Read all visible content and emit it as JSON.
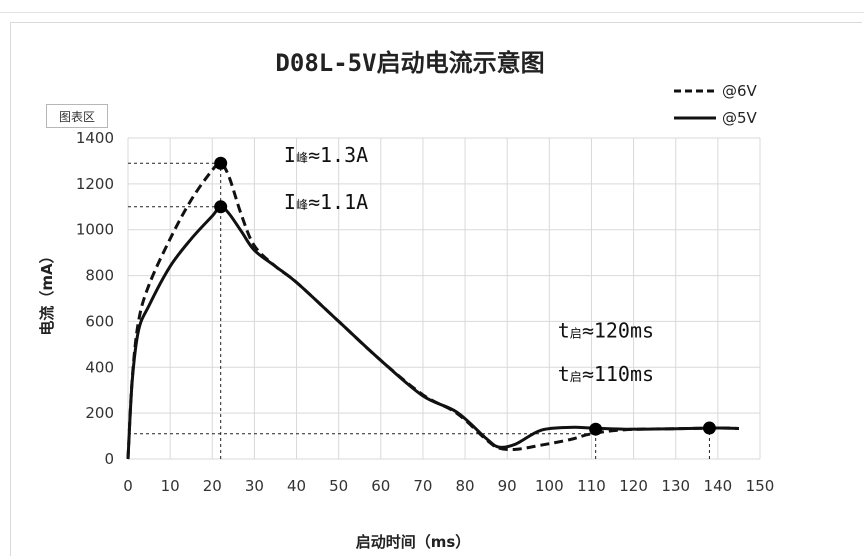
{
  "chart_area_label": "图表区",
  "chart_data": {
    "type": "line",
    "title": "D08L-5V启动电流示意图",
    "xlabel": "启动时间（ms）",
    "ylabel": "电流（mA）",
    "xlim": [
      0,
      150
    ],
    "ylim": [
      0,
      1400
    ],
    "x_ticks": [
      0,
      10,
      20,
      30,
      40,
      50,
      60,
      70,
      80,
      90,
      100,
      110,
      120,
      130,
      140,
      150
    ],
    "y_ticks": [
      0,
      200,
      400,
      600,
      800,
      1000,
      1200,
      1400
    ],
    "grid": true,
    "legend_position": "top-right",
    "series": [
      {
        "name": "@6V",
        "style": "dashed",
        "color": "#111111",
        "x": [
          0,
          1,
          2.5,
          5,
          10,
          15,
          20,
          22,
          24,
          27,
          30,
          35,
          40,
          50,
          60,
          70,
          78,
          85,
          88,
          92,
          98,
          105,
          110,
          118,
          130,
          140,
          145
        ],
        "y": [
          0,
          350,
          600,
          760,
          960,
          1130,
          1260,
          1290,
          1230,
          1060,
          930,
          840,
          770,
          600,
          430,
          280,
          200,
          85,
          48,
          42,
          60,
          85,
          110,
          128,
          132,
          135,
          133
        ]
      },
      {
        "name": "@5V",
        "style": "solid",
        "color": "#111111",
        "x": [
          0,
          1,
          2.5,
          5,
          10,
          15,
          20,
          22,
          24,
          27,
          30,
          35,
          40,
          50,
          60,
          70,
          78,
          85,
          88,
          92,
          98,
          105,
          110,
          118,
          130,
          140,
          145
        ],
        "y": [
          0,
          340,
          560,
          670,
          840,
          960,
          1060,
          1100,
          1070,
          990,
          910,
          840,
          770,
          600,
          430,
          275,
          205,
          90,
          52,
          65,
          125,
          138,
          135,
          130,
          132,
          135,
          133
        ]
      }
    ],
    "markers": [
      {
        "x": 22,
        "y": 1290
      },
      {
        "x": 22,
        "y": 1100
      },
      {
        "x": 111,
        "y": 130
      },
      {
        "x": 138,
        "y": 135
      }
    ],
    "reference_lines": [
      {
        "orientation": "h",
        "y": 1290,
        "x_from": 0,
        "x_to": 22
      },
      {
        "orientation": "h",
        "y": 1100,
        "x_from": 0,
        "x_to": 22
      },
      {
        "orientation": "v",
        "x": 22,
        "y_from": 0,
        "y_to": 1290
      },
      {
        "orientation": "h",
        "y": 110,
        "x_from": 0,
        "x_to": 111
      },
      {
        "orientation": "v",
        "x": 111,
        "y_from": 0,
        "y_to": 130
      },
      {
        "orientation": "v",
        "x": 138,
        "y_from": 0,
        "y_to": 135
      }
    ],
    "annotations": [
      {
        "main": "I",
        "sub": "峰",
        "tail": "≈1.3A",
        "x": 37,
        "y": 1295
      },
      {
        "main": "I",
        "sub": "峰",
        "tail": "≈1.1A",
        "x": 37,
        "y": 1090
      },
      {
        "main": "t",
        "sub": "启",
        "tail": "≈120ms",
        "x": 102,
        "y": 530
      },
      {
        "main": "t",
        "sub": "启",
        "tail": "≈110ms",
        "x": 102,
        "y": 340
      }
    ]
  }
}
